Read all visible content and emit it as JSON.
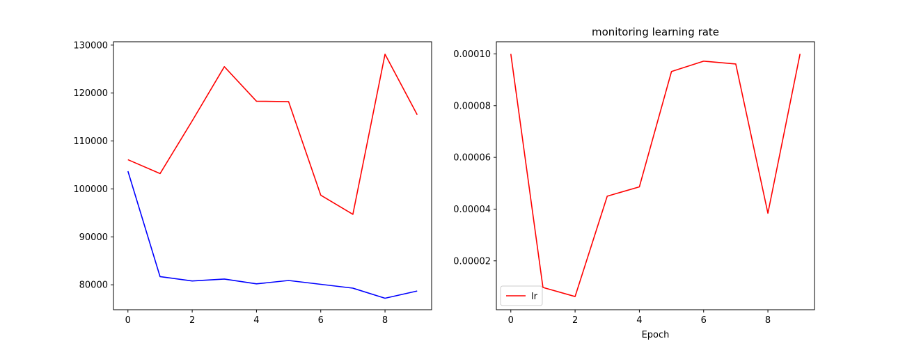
{
  "chart_data": [
    {
      "type": "line",
      "title": "",
      "xlabel": "",
      "ylabel": "",
      "x": [
        0,
        1,
        2,
        3,
        4,
        5,
        6,
        7,
        8,
        9
      ],
      "xticks": [
        0,
        2,
        4,
        6,
        8
      ],
      "yticks": [
        80000,
        90000,
        100000,
        110000,
        120000,
        130000
      ],
      "xlim": [
        -0.45,
        9.45
      ],
      "ylim": [
        74800,
        130700
      ],
      "grid": false,
      "series": [
        {
          "color": "#ff0000",
          "values": [
            106100,
            103200,
            114200,
            125500,
            118300,
            118200,
            98700,
            94700,
            128100,
            115500
          ]
        },
        {
          "color": "#0000ff",
          "values": [
            103700,
            81700,
            80800,
            81200,
            80200,
            80900,
            80100,
            79300,
            77200,
            78700
          ]
        }
      ]
    },
    {
      "type": "line",
      "title": "monitoring learning rate",
      "xlabel": "Epoch",
      "ylabel": "",
      "x": [
        0,
        1,
        2,
        3,
        4,
        5,
        6,
        7,
        8,
        9
      ],
      "xticks": [
        0,
        2,
        4,
        6,
        8
      ],
      "yticks": [
        2e-05,
        4e-05,
        6e-05,
        8e-05,
        0.0001
      ],
      "ytick_labels": [
        "0.00002",
        "0.00004",
        "0.00006",
        "0.00008",
        "0.00010"
      ],
      "xlim": [
        -0.45,
        9.45
      ],
      "ylim": [
        1.1e-06,
        0.0001047
      ],
      "grid": false,
      "legend": {
        "position": "lower-left",
        "entries": [
          "lr"
        ]
      },
      "series": [
        {
          "name": "lr",
          "color": "#ff0000",
          "values": [
            0.0001,
            9.7e-06,
            6.2e-06,
            4.5e-05,
            4.86e-05,
            9.32e-05,
            9.72e-05,
            9.61e-05,
            3.84e-05,
            0.0001
          ]
        }
      ]
    }
  ]
}
